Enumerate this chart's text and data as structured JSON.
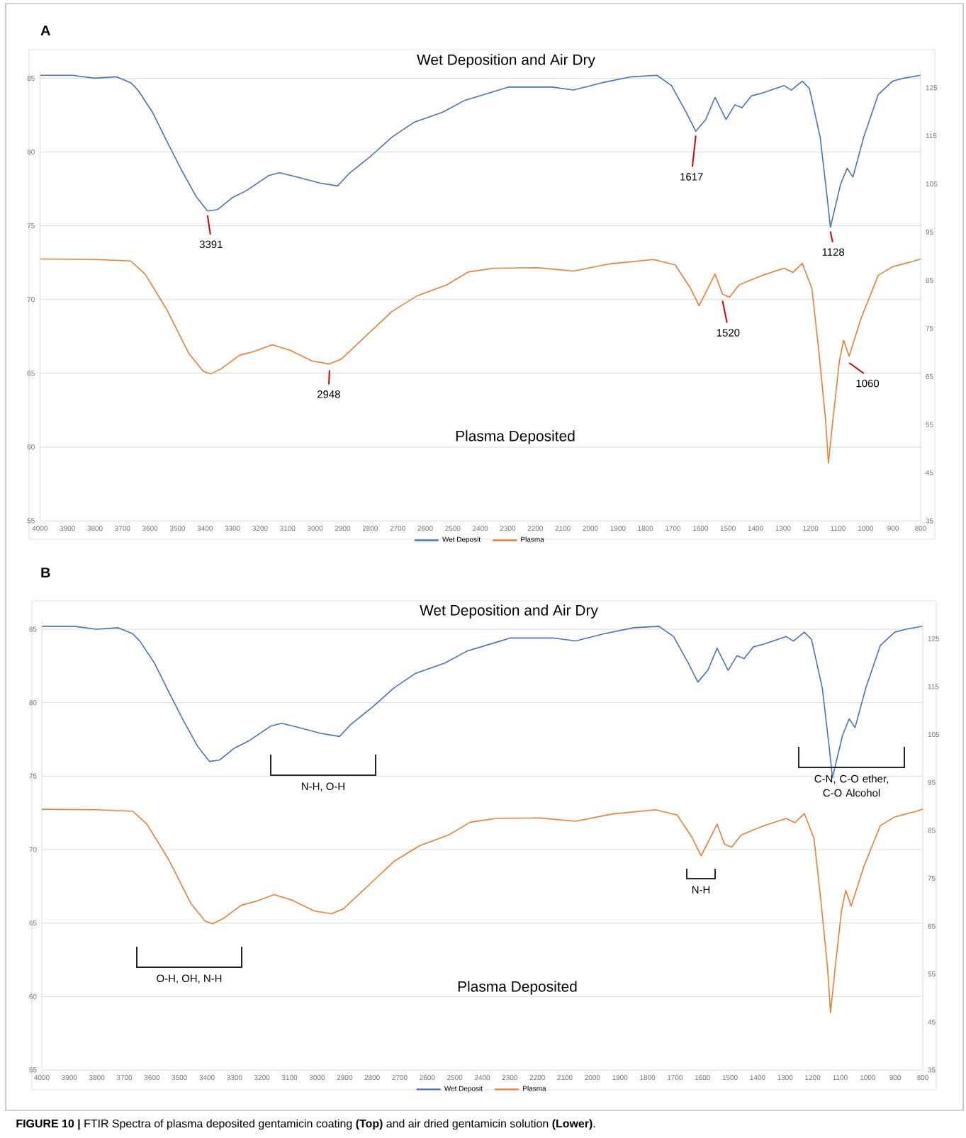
{
  "chart_data": [
    {
      "type": "line",
      "title": "A",
      "xlim": [
        4000,
        800
      ],
      "xticks": [
        4000,
        3900,
        3800,
        3700,
        3600,
        3500,
        3400,
        3300,
        3200,
        3100,
        3000,
        2900,
        2800,
        2700,
        2600,
        2500,
        2400,
        2300,
        2200,
        2100,
        2000,
        1900,
        1800,
        1700,
        1600,
        1500,
        1400,
        1300,
        1200,
        1100,
        1000,
        900,
        800
      ],
      "ylim": [
        55,
        85.5
      ],
      "yticks": [
        55,
        60,
        65,
        70,
        75,
        80,
        85
      ],
      "y2lim": [
        35,
        128.5
      ],
      "y2ticks": [
        35,
        45,
        55,
        65,
        75,
        85,
        95,
        105,
        115,
        125
      ],
      "grid": "y",
      "legend": "bottom",
      "marker": "none",
      "line_style": "solid",
      "series": [
        {
          "name": "Wet Deposit",
          "color": "#4472c4",
          "x": [
            4000,
            3881,
            3802,
            3723,
            3670,
            3644,
            3591,
            3538,
            3486,
            3433,
            3391,
            3354,
            3301,
            3248,
            3169,
            3129,
            3064,
            2984,
            2918,
            2879,
            2799,
            2721,
            2642,
            2536,
            2457,
            2351,
            2299,
            2140,
            2061,
            1956,
            1850,
            1758,
            1705,
            1652,
            1617,
            1581,
            1547,
            1507,
            1475,
            1449,
            1415,
            1375,
            1296,
            1270,
            1230,
            1204,
            1165,
            1140,
            1128,
            1091,
            1067,
            1046,
            1007,
            954,
            902,
            862,
            800
          ],
          "values": [
            85.2,
            85.2,
            85.0,
            85.1,
            84.7,
            84.2,
            82.7,
            80.7,
            78.8,
            77.0,
            76.0,
            76.1,
            76.9,
            77.4,
            78.4,
            78.6,
            78.3,
            77.9,
            77.7,
            78.5,
            79.7,
            81.0,
            82.0,
            82.7,
            83.5,
            84.1,
            84.4,
            84.4,
            84.2,
            84.7,
            85.1,
            85.2,
            84.5,
            82.7,
            81.4,
            82.2,
            83.7,
            82.2,
            83.2,
            83.0,
            83.8,
            84.0,
            84.5,
            84.2,
            84.8,
            84.3,
            81.0,
            77.0,
            74.9,
            77.8,
            78.9,
            78.3,
            81.0,
            83.9,
            84.8,
            85.0,
            85.2
          ]
        },
        {
          "name": "Plasma",
          "color": "#ed7d31",
          "axis": "y2",
          "x": [
            4000,
            3802,
            3670,
            3618,
            3538,
            3459,
            3407,
            3380,
            3341,
            3275,
            3222,
            3156,
            3090,
            3011,
            2948,
            2905,
            2799,
            2721,
            2628,
            2523,
            2444,
            2351,
            2193,
            2061,
            1929,
            1771,
            1692,
            1639,
            1605,
            1573,
            1547,
            1520,
            1494,
            1460,
            1415,
            1375,
            1296,
            1264,
            1230,
            1195,
            1169,
            1146,
            1135,
            1118,
            1095,
            1080,
            1060,
            1015,
            954,
            902,
            823,
            800
          ],
          "values": [
            89.4,
            89.3,
            89.0,
            86.3,
            78.8,
            69.8,
            66.1,
            65.5,
            66.6,
            69.4,
            70.2,
            71.6,
            70.4,
            68.2,
            67.6,
            68.6,
            74.3,
            78.5,
            81.8,
            84.0,
            86.7,
            87.5,
            87.6,
            86.9,
            88.4,
            89.3,
            88.2,
            83.6,
            79.7,
            83.3,
            86.3,
            82.1,
            81.5,
            84.0,
            85.1,
            86.0,
            87.5,
            86.6,
            88.5,
            83.3,
            69.8,
            56.4,
            47.0,
            56.4,
            68.3,
            72.5,
            69.2,
            77.3,
            86.0,
            87.8,
            89.0,
            89.4
          ]
        }
      ],
      "annotations": [
        "Wet Deposition and Air Dry",
        "Plasma Deposited",
        {
          "text": "3391",
          "x": 3391,
          "y": 76.0
        },
        {
          "text": "1617",
          "x": 1617,
          "y": 81.4
        },
        {
          "text": "1128",
          "x": 1128,
          "y": 74.9
        },
        {
          "text": "1520",
          "x": 1520,
          "y": 70.2
        },
        {
          "text": "2948",
          "x": 2948,
          "y": 65.5
        },
        {
          "text": "1060",
          "x": 1060,
          "y": 66.0
        }
      ]
    },
    {
      "type": "line",
      "title": "B",
      "xlim": [
        4000,
        800
      ],
      "xticks": [
        4000,
        3900,
        3800,
        3700,
        3600,
        3500,
        3400,
        3300,
        3200,
        3100,
        3000,
        2900,
        2800,
        2700,
        2600,
        2500,
        2400,
        2300,
        2200,
        2100,
        2000,
        1900,
        1800,
        1700,
        1600,
        1500,
        1400,
        1300,
        1200,
        1100,
        1000,
        900,
        800
      ],
      "ylim": [
        55,
        85.5
      ],
      "yticks": [
        55,
        60,
        65,
        70,
        75,
        80,
        85
      ],
      "y2lim": [
        35,
        128.5
      ],
      "y2ticks": [
        35,
        45,
        55,
        65,
        75,
        85,
        95,
        105,
        115,
        125
      ],
      "grid": "y",
      "legend": "bottom",
      "marker": "none",
      "line_style": "solid",
      "series": [
        {
          "name": "Wet Deposit",
          "color": "#4472c4",
          "x": [
            4000,
            3881,
            3802,
            3723,
            3670,
            3644,
            3591,
            3538,
            3486,
            3433,
            3391,
            3354,
            3301,
            3248,
            3169,
            3129,
            3064,
            2984,
            2918,
            2879,
            2799,
            2721,
            2642,
            2536,
            2457,
            2351,
            2299,
            2140,
            2061,
            1956,
            1850,
            1758,
            1705,
            1652,
            1617,
            1581,
            1547,
            1507,
            1475,
            1449,
            1415,
            1375,
            1296,
            1270,
            1230,
            1204,
            1165,
            1140,
            1128,
            1091,
            1067,
            1046,
            1007,
            954,
            902,
            862,
            800
          ],
          "values": [
            85.2,
            85.2,
            85.0,
            85.1,
            84.7,
            84.2,
            82.7,
            80.7,
            78.8,
            77.0,
            76.0,
            76.1,
            76.9,
            77.4,
            78.4,
            78.6,
            78.3,
            77.9,
            77.7,
            78.5,
            79.7,
            81.0,
            82.0,
            82.7,
            83.5,
            84.1,
            84.4,
            84.4,
            84.2,
            84.7,
            85.1,
            85.2,
            84.5,
            82.7,
            81.4,
            82.2,
            83.7,
            82.2,
            83.2,
            83.0,
            83.8,
            84.0,
            84.5,
            84.2,
            84.8,
            84.3,
            81.0,
            77.0,
            74.9,
            77.8,
            78.9,
            78.3,
            81.0,
            83.9,
            84.8,
            85.0,
            85.2
          ]
        },
        {
          "name": "Plasma",
          "color": "#ed7d31",
          "axis": "y2",
          "x": [
            4000,
            3802,
            3670,
            3618,
            3538,
            3459,
            3407,
            3380,
            3341,
            3275,
            3222,
            3156,
            3090,
            3011,
            2948,
            2905,
            2799,
            2721,
            2628,
            2523,
            2444,
            2351,
            2193,
            2061,
            1929,
            1771,
            1692,
            1639,
            1605,
            1573,
            1547,
            1520,
            1494,
            1460,
            1415,
            1375,
            1296,
            1264,
            1230,
            1195,
            1169,
            1146,
            1135,
            1118,
            1095,
            1080,
            1060,
            1015,
            954,
            902,
            823,
            800
          ],
          "values": [
            89.4,
            89.3,
            89.0,
            86.3,
            78.8,
            69.8,
            66.1,
            65.5,
            66.6,
            69.4,
            70.2,
            71.6,
            70.4,
            68.2,
            67.6,
            68.6,
            74.3,
            78.5,
            81.8,
            84.0,
            86.7,
            87.5,
            87.6,
            86.9,
            88.4,
            89.3,
            88.2,
            83.6,
            79.7,
            83.3,
            86.3,
            82.1,
            81.5,
            84.0,
            85.1,
            86.0,
            87.5,
            86.6,
            88.5,
            83.3,
            69.8,
            56.4,
            47.0,
            56.4,
            68.3,
            72.5,
            69.2,
            77.3,
            86.0,
            87.8,
            89.0,
            89.4
          ]
        }
      ],
      "annotations": [
        "Wet Deposition and Air Dry",
        "Plasma Deposited",
        "N-H, O-H",
        "C-N, C-O ether, C-O Alcohol",
        "N-H",
        "O-H, OH, N-H",
        "**FIGURE 10 |** FTIR Spectra of plasma deposited gentamicin coating **(Top)** and air dried gentamicin solution **(Lower)**."
      ]
    }
  ]
}
